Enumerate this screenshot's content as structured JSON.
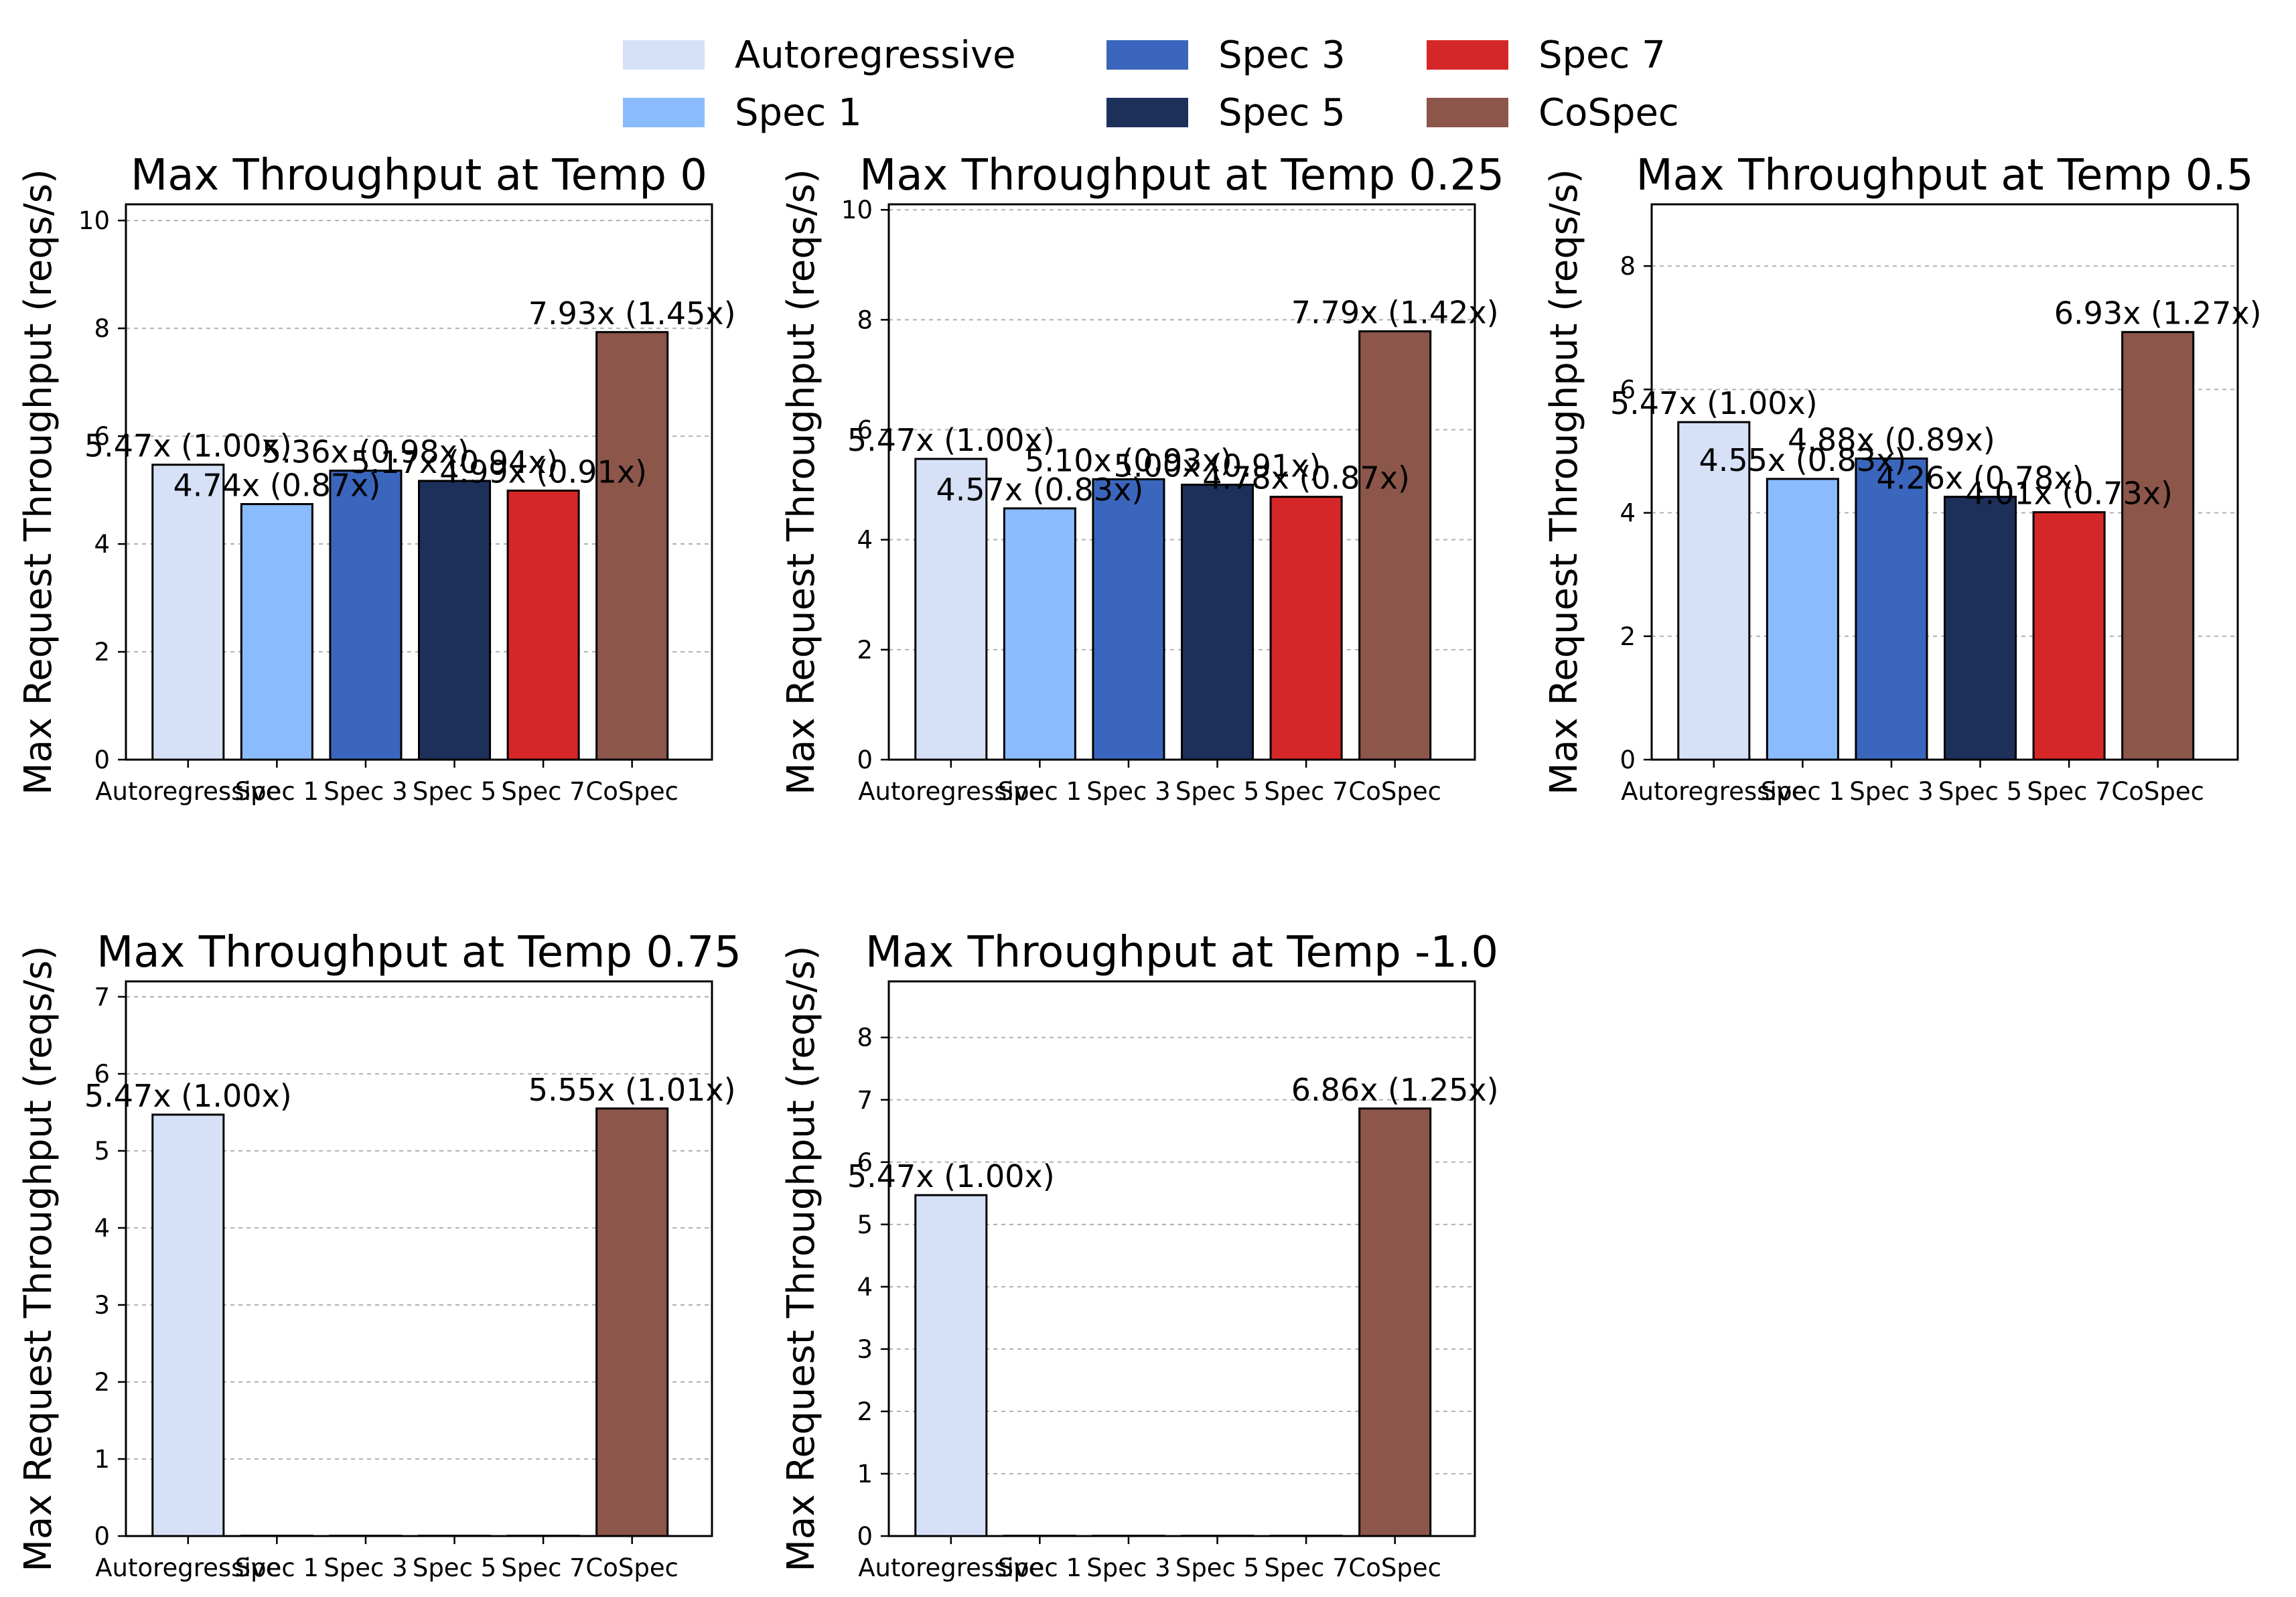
{
  "legend": {
    "entries": [
      {
        "label": "Autoregressive",
        "color": "#d6e1f8"
      },
      {
        "label": "Spec 1",
        "color": "#8abbfd"
      },
      {
        "label": "Spec 3",
        "color": "#3a66bd"
      },
      {
        "label": "Spec 5",
        "color": "#1c305a"
      },
      {
        "label": "Spec 7",
        "color": "#d62728"
      },
      {
        "label": "CoSpec",
        "color": "#8c564b"
      }
    ]
  },
  "chart_data": [
    {
      "type": "bar",
      "title": "Max Throughput at Temp 0",
      "ylabel": "Max Request Throughput (reqs/s)",
      "xlabel": "",
      "categories": [
        "Autoregressive",
        "Spec 1",
        "Spec 3",
        "Spec 5",
        "Spec 7",
        "CoSpec"
      ],
      "values": [
        5.47,
        4.74,
        5.36,
        5.17,
        4.99,
        7.93
      ],
      "data_labels": [
        "5.47x (1.00x)",
        "4.74x (0.87x)",
        "5.36x (0.98x)",
        "5.17x (0.94x)",
        "4.99x (0.91x)",
        "7.93x (1.45x)"
      ],
      "ylim": [
        0,
        10.3
      ],
      "yticks": [
        0,
        2,
        4,
        6,
        8,
        10
      ],
      "grid": "y-dashed"
    },
    {
      "type": "bar",
      "title": "Max Throughput at Temp 0.25",
      "ylabel": "Max Request Throughput (reqs/s)",
      "xlabel": "",
      "categories": [
        "Autoregressive",
        "Spec 1",
        "Spec 3",
        "Spec 5",
        "Spec 7",
        "CoSpec"
      ],
      "values": [
        5.47,
        4.57,
        5.1,
        5.0,
        4.78,
        7.79
      ],
      "data_labels": [
        "5.47x (1.00x)",
        "4.57x (0.83x)",
        "5.10x (0.93x)",
        "5.00x (0.91x)",
        "4.78x (0.87x)",
        "7.79x (1.42x)"
      ],
      "ylim": [
        0,
        10.1
      ],
      "yticks": [
        0,
        2,
        4,
        6,
        8,
        10
      ],
      "grid": "y-dashed"
    },
    {
      "type": "bar",
      "title": "Max Throughput at Temp 0.5",
      "ylabel": "Max Request Throughput (reqs/s)",
      "xlabel": "",
      "categories": [
        "Autoregressive",
        "Spec 1",
        "Spec 3",
        "Spec 5",
        "Spec 7",
        "CoSpec"
      ],
      "values": [
        5.47,
        4.55,
        4.88,
        4.26,
        4.01,
        6.93
      ],
      "data_labels": [
        "5.47x (1.00x)",
        "4.55x (0.83x)",
        "4.88x (0.89x)",
        "4.26x (0.78x)",
        "4.01x (0.73x)",
        "6.93x (1.27x)"
      ],
      "ylim": [
        0,
        9.0
      ],
      "yticks": [
        0,
        2,
        4,
        6,
        8
      ],
      "grid": "y-dashed"
    },
    {
      "type": "bar",
      "title": "Max Throughput at Temp 0.75",
      "ylabel": "Max Request Throughput (reqs/s)",
      "xlabel": "",
      "categories": [
        "Autoregressive",
        "Spec 1",
        "Spec 3",
        "Spec 5",
        "Spec 7",
        "CoSpec"
      ],
      "values": [
        5.47,
        0,
        0,
        0,
        0,
        5.55
      ],
      "data_labels": [
        "5.47x (1.00x)",
        "",
        "",
        "",
        "",
        "5.55x (1.01x)"
      ],
      "ylim": [
        0,
        7.2
      ],
      "yticks": [
        0,
        1,
        2,
        3,
        4,
        5,
        6,
        7
      ],
      "grid": "y-dashed"
    },
    {
      "type": "bar",
      "title": "Max Throughput at Temp -1.0",
      "ylabel": "Max Request Throughput (reqs/s)",
      "xlabel": "",
      "categories": [
        "Autoregressive",
        "Spec 1",
        "Spec 3",
        "Spec 5",
        "Spec 7",
        "CoSpec"
      ],
      "values": [
        5.47,
        0,
        0,
        0,
        0,
        6.86
      ],
      "data_labels": [
        "5.47x (1.00x)",
        "",
        "",
        "",
        "",
        "6.86x (1.25x)"
      ],
      "ylim": [
        0,
        8.9
      ],
      "yticks": [
        0,
        1,
        2,
        3,
        4,
        5,
        6,
        7,
        8
      ],
      "grid": "y-dashed"
    }
  ]
}
